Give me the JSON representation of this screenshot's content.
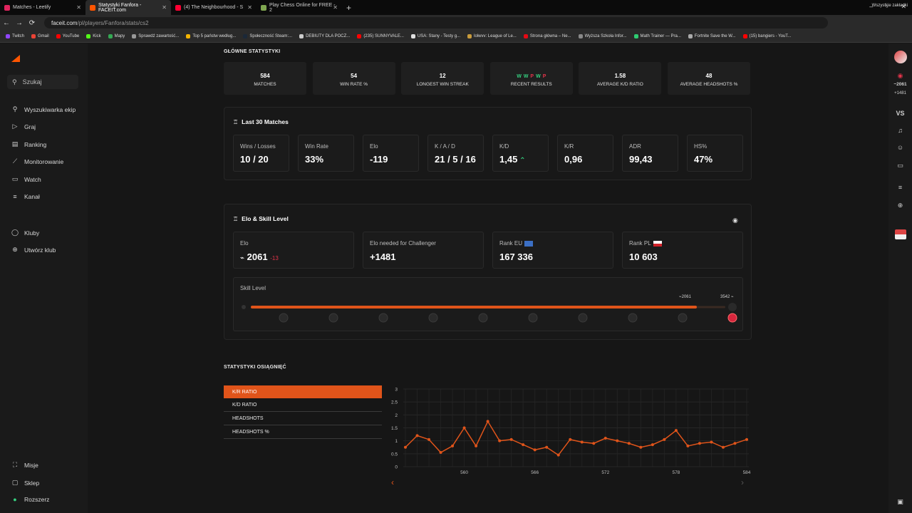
{
  "browser": {
    "tabs": [
      {
        "title": "Matches - Leetify",
        "color": "#e0245e"
      },
      {
        "title": "Statystyki Fanfora - FACEIT.com",
        "color": "#ff5500"
      },
      {
        "title": "(4) The Neighbourhood - S",
        "color": "#ff0033"
      },
      {
        "title": "Play Chess Online for FREE - 2",
        "color": "#7fa650"
      }
    ],
    "url_host": "faceit.com",
    "url_path": "/pl/players/Fanfora/stats/cs2",
    "bookmarks": [
      {
        "label": "Twitch",
        "color": "#9146ff"
      },
      {
        "label": "Gmail",
        "color": "#ea4335"
      },
      {
        "label": "YouTube",
        "color": "#ff0000"
      },
      {
        "label": "Kick",
        "color": "#53fc18"
      },
      {
        "label": "Mapy",
        "color": "#34a853"
      },
      {
        "label": "Sprawdź zawartość...",
        "color": "#999999"
      },
      {
        "label": "Top 5 państw według...",
        "color": "#f4b400"
      },
      {
        "label": "Społeczność Steam:...",
        "color": "#1b2838"
      },
      {
        "label": "DEBIUTY DLA POCZ...",
        "color": "#cccccc"
      },
      {
        "label": "(235) SUNNYVALE...",
        "color": "#ff0000"
      },
      {
        "label": "USA: Stany - Testy g...",
        "color": "#e0e0e0"
      },
      {
        "label": "lolwvv: League of Le...",
        "color": "#c89b3c"
      },
      {
        "label": "Strona główna – Ne...",
        "color": "#e50914"
      },
      {
        "label": "Wyższa Szkoła Infor...",
        "color": "#888888"
      },
      {
        "label": "Math Trainer — Pra...",
        "color": "#2ecc71"
      },
      {
        "label": "Fortnite Save the W...",
        "color": "#aaaaaa"
      },
      {
        "label": "(15) bangiers - YouT...",
        "color": "#ff0000"
      }
    ],
    "bookmarks_right": "Wszystkie zakładki"
  },
  "sidebar": {
    "search_placeholder": "Szukaj",
    "items": [
      {
        "label": "Wyszukiwarka ekip",
        "icon": "team-search-icon",
        "glyph": "⚲"
      },
      {
        "label": "Graj",
        "icon": "play-icon",
        "glyph": "▷"
      },
      {
        "label": "Ranking",
        "icon": "ranking-icon",
        "glyph": "▤"
      },
      {
        "label": "Monitorowanie",
        "icon": "chart-line-icon",
        "glyph": "⟋"
      },
      {
        "label": "Watch",
        "icon": "video-icon",
        "glyph": "▭"
      },
      {
        "label": "Kanał",
        "icon": "feed-icon",
        "glyph": "≡"
      },
      {
        "label": "Kluby",
        "icon": "clubs-icon",
        "glyph": "◯"
      },
      {
        "label": "Utwórz klub",
        "icon": "add-club-icon",
        "glyph": "⊕"
      }
    ],
    "bottom": [
      {
        "label": "Misje",
        "icon": "missions-icon",
        "glyph": "⛶"
      },
      {
        "label": "Sklep",
        "icon": "shop-icon",
        "glyph": "▢"
      },
      {
        "label": "Rozszerz",
        "icon": "extend-icon",
        "glyph": "●"
      }
    ]
  },
  "rightbar": {
    "elo": "2061",
    "elo_needed": "+1481",
    "vs": "VS"
  },
  "main_stats": {
    "title": "GŁÓWNE STATYSTYKI",
    "cards": [
      {
        "value": "584",
        "label": "MATCHES"
      },
      {
        "value": "54",
        "label": "WIN RATE %"
      },
      {
        "value": "12",
        "label": "LONGEST WIN STREAK"
      },
      {
        "value": "W W P W P",
        "label": "RECENT RESULTS"
      },
      {
        "value": "1.58",
        "label": "AVERAGE K/D RATIO"
      },
      {
        "value": "48",
        "label": "AVERAGE HEADSHOTS %"
      }
    ],
    "recent": [
      {
        "r": "W",
        "color": "#35d07f"
      },
      {
        "r": "W",
        "color": "#35d07f"
      },
      {
        "r": "P",
        "color": "#e2344a"
      },
      {
        "r": "W",
        "color": "#35d07f"
      },
      {
        "r": "P",
        "color": "#e2344a"
      }
    ]
  },
  "last30": {
    "title": "Last 30 Matches",
    "cards": [
      {
        "label": "Wins / Losses",
        "value": "10 / 20"
      },
      {
        "label": "Win Rate",
        "value": "33%"
      },
      {
        "label": "Elo",
        "value": "-119"
      },
      {
        "label": "K / A / D",
        "value": "21 / 5 / 16"
      },
      {
        "label": "K/D",
        "value": "1,45"
      },
      {
        "label": "K/R",
        "value": "0,96"
      },
      {
        "label": "ADR",
        "value": "99,43"
      },
      {
        "label": "HS%",
        "value": "47%"
      }
    ]
  },
  "elo_panel": {
    "title": "Elo & Skill Level",
    "cards": [
      {
        "label": "Elo",
        "value": "2061",
        "delta": "-13"
      },
      {
        "label": "Elo needed for Challenger",
        "value": "+1481"
      },
      {
        "label": "Rank EU",
        "value": "167 336"
      },
      {
        "label": "Rank PL",
        "value": "10 603"
      }
    ],
    "skill_label": "Skill Level",
    "current_elo": "2061",
    "max_elo": "3542",
    "progress_fraction": 0.94,
    "levels": 10,
    "current_level": 10
  },
  "achievements": {
    "title": "STATYSTYKI OSIĄGNIĘĆ",
    "tabs": [
      "K/R RATIO",
      "K/D RATIO",
      "HEADSHOTS",
      "HEADSHOTS %"
    ],
    "selected_tab": 0
  },
  "chart_data": {
    "type": "line",
    "title": "",
    "xlabel": "",
    "ylabel": "",
    "ylim": [
      0,
      3
    ],
    "yticks": [
      0,
      0.5,
      1,
      1.5,
      2,
      2.5,
      3
    ],
    "xticks": [
      560,
      566,
      572,
      578,
      584
    ],
    "xlim": [
      555,
      584
    ],
    "grid": true,
    "series": [
      {
        "color": "#e0541a",
        "x": [
          555,
          556,
          557,
          558,
          559,
          560,
          561,
          562,
          563,
          564,
          565,
          566,
          567,
          568,
          569,
          570,
          571,
          572,
          573,
          574,
          575,
          576,
          577,
          578,
          579,
          580,
          581,
          582,
          583,
          584
        ],
        "values": [
          0.75,
          1.2,
          1.05,
          0.55,
          0.8,
          1.5,
          0.8,
          1.75,
          1.0,
          1.05,
          0.85,
          0.65,
          0.75,
          0.45,
          1.05,
          0.95,
          0.9,
          1.1,
          1.0,
          0.9,
          0.75,
          0.85,
          1.05,
          1.4,
          0.8,
          0.9,
          0.95,
          0.75,
          0.9,
          1.05
        ]
      }
    ],
    "nav_prev": "‹",
    "nav_next": "›"
  }
}
